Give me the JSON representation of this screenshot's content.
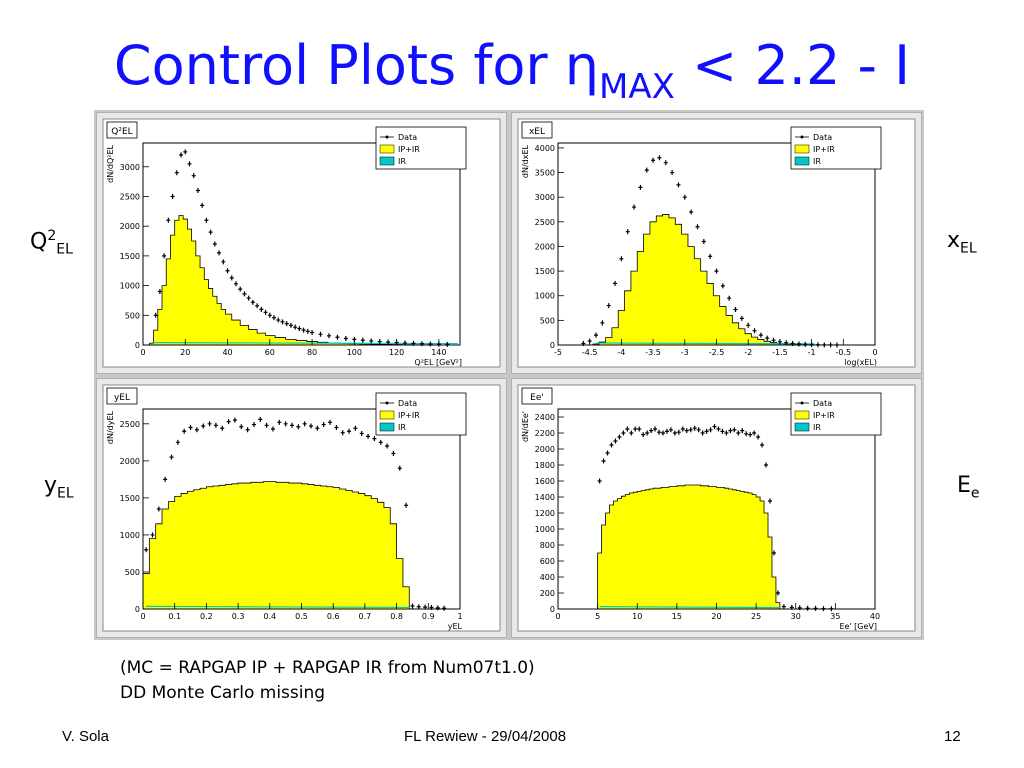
{
  "slide": {
    "title_main": "Control Plots for η",
    "title_sub": "MAX",
    "title_tail": " < 2.2 - I",
    "note_line1": "(MC = RAPGAP IP + RAPGAP IR  from Num07t1.0)",
    "note_line2": "DD Monte Carlo missing",
    "footer_left": "V. Sola",
    "footer_center": "FL Rewiew - 29/04/2008",
    "footer_right": "12"
  },
  "side_labels": {
    "q2": {
      "main": "Q",
      "sup": "2",
      "sub": "EL"
    },
    "x": {
      "main": "x",
      "sub": "EL"
    },
    "y": {
      "main": "y",
      "sub": "EL"
    },
    "e": {
      "main": "E",
      "sub": "e"
    }
  },
  "colors": {
    "title": "#1010ff",
    "mc_fill": "#ffff00",
    "ir_line": "#00c8c8",
    "data_marker": "#000000",
    "pad_bg": "#ffffff",
    "frame_bg": "#e8e8e8"
  },
  "chart_data": [
    {
      "type": "histogram",
      "name_box": "Q²EL",
      "ylabel": "dN/dQ²EL",
      "xlabel": "Q²EL [GeV²]",
      "xlim": [
        0,
        150
      ],
      "ylim": [
        0,
        3400
      ],
      "xticks": [
        0,
        20,
        40,
        60,
        80,
        100,
        120,
        140
      ],
      "xtick_labels": [
        "0",
        "20",
        "40",
        "60",
        "80",
        "100",
        "120",
        "140"
      ],
      "yticks": [
        0,
        500,
        1000,
        1500,
        2000,
        2500,
        3000
      ],
      "ytick_labels": [
        "0",
        "500",
        "1000",
        "1500",
        "2000",
        "2500",
        "3000"
      ],
      "legend": [
        "Data",
        "IP+IR",
        "IR"
      ],
      "mc_x": [
        4,
        6,
        8,
        10,
        12,
        14,
        16,
        18,
        20,
        22,
        24,
        26,
        28,
        30,
        32,
        34,
        36,
        38,
        40,
        44,
        48,
        52,
        56,
        60,
        65,
        70,
        75,
        80,
        85,
        90,
        95,
        100,
        105,
        110,
        115,
        120,
        125,
        130,
        135,
        140,
        148
      ],
      "mc_y": [
        30,
        250,
        600,
        1000,
        1450,
        1850,
        2100,
        2180,
        2120,
        1950,
        1750,
        1500,
        1300,
        1100,
        950,
        820,
        700,
        600,
        520,
        420,
        330,
        260,
        200,
        160,
        125,
        95,
        75,
        60,
        45,
        35,
        28,
        22,
        17,
        13,
        10,
        8,
        6,
        4,
        3,
        2,
        1
      ],
      "data_x": [
        6,
        8,
        10,
        12,
        14,
        16,
        18,
        20,
        22,
        24,
        26,
        28,
        30,
        32,
        34,
        36,
        38,
        40,
        42,
        44,
        46,
        48,
        50,
        52,
        54,
        56,
        58,
        60,
        62,
        64,
        66,
        68,
        70,
        72,
        74,
        76,
        78,
        80,
        84,
        88,
        92,
        96,
        100,
        104,
        108,
        112,
        116,
        120,
        124,
        128,
        132,
        136,
        140,
        144
      ],
      "data_y": [
        500,
        900,
        1500,
        2100,
        2500,
        2900,
        3200,
        3250,
        3050,
        2850,
        2600,
        2350,
        2100,
        1900,
        1700,
        1550,
        1400,
        1250,
        1130,
        1030,
        940,
        860,
        790,
        720,
        660,
        600,
        550,
        500,
        460,
        420,
        390,
        360,
        330,
        300,
        275,
        250,
        230,
        210,
        180,
        155,
        130,
        110,
        95,
        80,
        68,
        58,
        48,
        40,
        33,
        27,
        22,
        17,
        14,
        11
      ],
      "ir_y_max": 40
    },
    {
      "type": "histogram",
      "name_box": "xEL",
      "ylabel": "dN/dxEL",
      "xlabel": "log(xEL)",
      "xlim": [
        -5,
        0
      ],
      "ylim": [
        0,
        4100
      ],
      "xticks": [
        -5,
        -4.5,
        -4,
        -3.5,
        -3,
        -2.5,
        -2,
        -1.5,
        -1,
        -0.5,
        0
      ],
      "xtick_labels": [
        "-5",
        "-4.5",
        "-4",
        "-3.5",
        "-3",
        "-2.5",
        "-2",
        "-1.5",
        "-1",
        "-0.5",
        "0"
      ],
      "yticks": [
        0,
        500,
        1000,
        1500,
        2000,
        2500,
        3000,
        3500,
        4000
      ],
      "ytick_labels": [
        "0",
        "500",
        "1000",
        "1500",
        "2000",
        "2500",
        "3000",
        "3500",
        "4000"
      ],
      "legend": [
        "Data",
        "IP+IR",
        "IR"
      ],
      "mc_x": [
        -4.4,
        -4.3,
        -4.2,
        -4.1,
        -4.0,
        -3.9,
        -3.8,
        -3.7,
        -3.6,
        -3.5,
        -3.4,
        -3.3,
        -3.2,
        -3.1,
        -3.0,
        -2.9,
        -2.8,
        -2.7,
        -2.6,
        -2.5,
        -2.4,
        -2.3,
        -2.2,
        -2.1,
        -2.0,
        -1.9,
        -1.8,
        -1.7,
        -1.6,
        -1.5,
        -1.4,
        -1.3,
        -1.2,
        -1.1,
        -1.0
      ],
      "mc_y": [
        20,
        60,
        150,
        350,
        700,
        1100,
        1500,
        1900,
        2250,
        2500,
        2620,
        2650,
        2580,
        2450,
        2250,
        2000,
        1750,
        1500,
        1250,
        1000,
        780,
        600,
        450,
        330,
        230,
        160,
        110,
        75,
        50,
        30,
        20,
        12,
        8,
        5,
        2
      ],
      "data_x": [
        -4.6,
        -4.5,
        -4.4,
        -4.3,
        -4.2,
        -4.1,
        -4.0,
        -3.9,
        -3.8,
        -3.7,
        -3.6,
        -3.5,
        -3.4,
        -3.3,
        -3.2,
        -3.1,
        -3.0,
        -2.9,
        -2.8,
        -2.7,
        -2.6,
        -2.5,
        -2.4,
        -2.3,
        -2.2,
        -2.1,
        -2.0,
        -1.9,
        -1.8,
        -1.7,
        -1.6,
        -1.5,
        -1.4,
        -1.3,
        -1.2,
        -1.1,
        -1.0,
        -0.9,
        -0.8,
        -0.7,
        -0.6
      ],
      "data_y": [
        30,
        80,
        200,
        450,
        800,
        1250,
        1750,
        2300,
        2800,
        3200,
        3550,
        3750,
        3800,
        3700,
        3500,
        3250,
        3000,
        2700,
        2400,
        2100,
        1800,
        1500,
        1200,
        950,
        720,
        540,
        400,
        290,
        200,
        140,
        95,
        65,
        45,
        30,
        20,
        13,
        8,
        5,
        3,
        2,
        1
      ],
      "ir_y_max": 40
    },
    {
      "type": "histogram",
      "name_box": "yEL",
      "ylabel": "dN/dyEL",
      "xlabel": "yEL",
      "xlim": [
        0,
        1
      ],
      "ylim": [
        0,
        2700
      ],
      "xticks": [
        0,
        0.1,
        0.2,
        0.3,
        0.4,
        0.5,
        0.6,
        0.7,
        0.8,
        0.9,
        1
      ],
      "xtick_labels": [
        "0",
        "0.1",
        "0.2",
        "0.3",
        "0.4",
        "0.5",
        "0.6",
        "0.7",
        "0.8",
        "0.9",
        "1"
      ],
      "yticks": [
        0,
        500,
        1000,
        1500,
        2000,
        2500
      ],
      "ytick_labels": [
        "0",
        "500",
        "1000",
        "1500",
        "2000",
        "2500"
      ],
      "legend": [
        "Data",
        "IP+IR",
        "IR"
      ],
      "mc_x": [
        0.01,
        0.03,
        0.05,
        0.07,
        0.09,
        0.11,
        0.13,
        0.15,
        0.17,
        0.19,
        0.21,
        0.23,
        0.25,
        0.27,
        0.29,
        0.31,
        0.33,
        0.35,
        0.37,
        0.39,
        0.41,
        0.43,
        0.45,
        0.47,
        0.49,
        0.51,
        0.53,
        0.55,
        0.57,
        0.59,
        0.61,
        0.63,
        0.65,
        0.67,
        0.69,
        0.71,
        0.73,
        0.75,
        0.77,
        0.79,
        0.81,
        0.83
      ],
      "mc_y": [
        480,
        950,
        1150,
        1350,
        1450,
        1520,
        1560,
        1590,
        1610,
        1630,
        1650,
        1660,
        1670,
        1680,
        1690,
        1700,
        1700,
        1710,
        1710,
        1720,
        1720,
        1710,
        1710,
        1700,
        1700,
        1690,
        1680,
        1670,
        1660,
        1650,
        1640,
        1620,
        1600,
        1580,
        1560,
        1530,
        1490,
        1440,
        1370,
        1150,
        680,
        300
      ],
      "data_x": [
        0.01,
        0.03,
        0.05,
        0.07,
        0.09,
        0.11,
        0.13,
        0.15,
        0.17,
        0.19,
        0.21,
        0.23,
        0.25,
        0.27,
        0.29,
        0.31,
        0.33,
        0.35,
        0.37,
        0.39,
        0.41,
        0.43,
        0.45,
        0.47,
        0.49,
        0.51,
        0.53,
        0.55,
        0.57,
        0.59,
        0.61,
        0.63,
        0.65,
        0.67,
        0.69,
        0.71,
        0.73,
        0.75,
        0.77,
        0.79,
        0.81,
        0.83,
        0.85,
        0.87,
        0.89,
        0.91,
        0.93,
        0.95
      ],
      "data_y": [
        800,
        1000,
        1350,
        1750,
        2050,
        2250,
        2400,
        2450,
        2420,
        2470,
        2500,
        2480,
        2440,
        2530,
        2550,
        2460,
        2420,
        2490,
        2560,
        2480,
        2430,
        2520,
        2500,
        2480,
        2460,
        2500,
        2470,
        2440,
        2490,
        2520,
        2450,
        2380,
        2400,
        2440,
        2370,
        2330,
        2300,
        2250,
        2200,
        2100,
        1900,
        1400,
        40,
        30,
        25,
        20,
        15,
        10
      ],
      "ir_y_max": 35
    },
    {
      "type": "histogram",
      "name_box": "Ee'",
      "ylabel": "dN/dEe'",
      "xlabel": "Ee' [GeV]",
      "xlim": [
        0,
        40
      ],
      "ylim": [
        0,
        2500
      ],
      "xticks": [
        0,
        5,
        10,
        15,
        20,
        25,
        30,
        35,
        40
      ],
      "xtick_labels": [
        "0",
        "5",
        "10",
        "15",
        "20",
        "25",
        "30",
        "35",
        "40"
      ],
      "yticks": [
        0,
        200,
        400,
        600,
        800,
        1000,
        1200,
        1400,
        1600,
        1800,
        2000,
        2200,
        2400
      ],
      "ytick_labels": [
        "0",
        "200",
        "400",
        "600",
        "800",
        "1000",
        "1200",
        "1400",
        "1600",
        "1800",
        "2000",
        "2200",
        "2400"
      ],
      "legend": [
        "Data",
        "IP+IR",
        "IR"
      ],
      "mc_x": [
        5.25,
        5.75,
        6.25,
        6.75,
        7.25,
        7.75,
        8.25,
        8.75,
        9.25,
        9.75,
        10.25,
        10.75,
        11.25,
        11.75,
        12.25,
        12.75,
        13.25,
        13.75,
        14.25,
        14.75,
        15.25,
        15.75,
        16.25,
        16.75,
        17.25,
        17.75,
        18.25,
        18.75,
        19.25,
        19.75,
        20.25,
        20.75,
        21.25,
        21.75,
        22.25,
        22.75,
        23.25,
        23.75,
        24.25,
        24.75,
        25.25,
        25.75,
        26.25,
        26.75,
        27.25,
        27.75
      ],
      "mc_y": [
        700,
        1050,
        1200,
        1300,
        1350,
        1380,
        1410,
        1430,
        1450,
        1460,
        1470,
        1480,
        1490,
        1500,
        1510,
        1510,
        1520,
        1520,
        1530,
        1530,
        1540,
        1540,
        1550,
        1550,
        1550,
        1550,
        1540,
        1540,
        1530,
        1530,
        1520,
        1520,
        1510,
        1500,
        1490,
        1480,
        1470,
        1460,
        1450,
        1430,
        1400,
        1350,
        1200,
        900,
        400,
        80
      ],
      "data_x": [
        5.25,
        5.75,
        6.25,
        6.75,
        7.25,
        7.75,
        8.25,
        8.75,
        9.25,
        9.75,
        10.25,
        10.75,
        11.25,
        11.75,
        12.25,
        12.75,
        13.25,
        13.75,
        14.25,
        14.75,
        15.25,
        15.75,
        16.25,
        16.75,
        17.25,
        17.75,
        18.25,
        18.75,
        19.25,
        19.75,
        20.25,
        20.75,
        21.25,
        21.75,
        22.25,
        22.75,
        23.25,
        23.75,
        24.25,
        24.75,
        25.25,
        25.75,
        26.25,
        26.75,
        27.25,
        27.75,
        28.5,
        29.5,
        30.5,
        31.5,
        32.5,
        33.5,
        34.5
      ],
      "data_y": [
        1600,
        1850,
        1950,
        2050,
        2100,
        2150,
        2200,
        2250,
        2200,
        2250,
        2250,
        2180,
        2200,
        2230,
        2250,
        2210,
        2200,
        2220,
        2240,
        2200,
        2210,
        2250,
        2230,
        2240,
        2260,
        2240,
        2200,
        2220,
        2240,
        2280,
        2250,
        2220,
        2200,
        2230,
        2240,
        2200,
        2230,
        2190,
        2180,
        2200,
        2150,
        2050,
        1800,
        1350,
        700,
        200,
        30,
        20,
        15,
        10,
        8,
        5,
        3
      ],
      "ir_y_max": 30
    }
  ]
}
